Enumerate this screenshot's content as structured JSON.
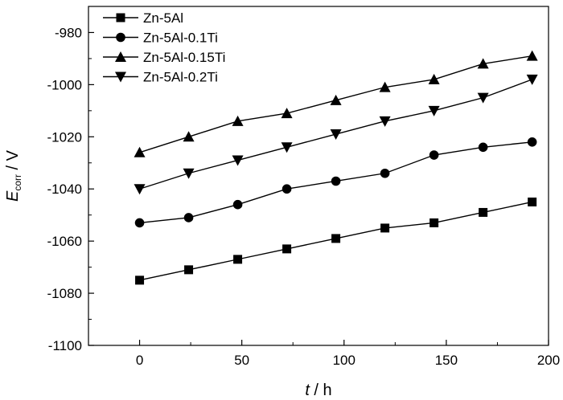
{
  "chart_data": {
    "type": "line",
    "xlabel": {
      "var": "t",
      "unit": " / h"
    },
    "ylabel": {
      "var": "E",
      "sub": "corr",
      "unit": " / V"
    },
    "xlim": [
      -25,
      200
    ],
    "ylim": [
      -1100,
      -970
    ],
    "xticks": [
      0,
      50,
      100,
      150,
      200
    ],
    "yticks": [
      -980,
      -1000,
      -1020,
      -1040,
      -1060,
      -1080,
      -1100
    ],
    "grid": false,
    "legend_position": "top-left",
    "x": [
      0,
      24,
      48,
      72,
      96,
      120,
      144,
      168,
      192
    ],
    "series": [
      {
        "name": "Zn-5Al",
        "marker": "square",
        "values": [
          -1075,
          -1071,
          -1067,
          -1063,
          -1059,
          -1055,
          -1053,
          -1049,
          -1045
        ]
      },
      {
        "name": "Zn-5Al-0.1Ti",
        "marker": "circle",
        "values": [
          -1053,
          -1051,
          -1046,
          -1040,
          -1037,
          -1034,
          -1027,
          -1024,
          -1022
        ]
      },
      {
        "name": "Zn-5Al-0.15Ti",
        "marker": "triangle-up",
        "values": [
          -1026,
          -1020,
          -1014,
          -1011,
          -1006,
          -1001,
          -998,
          -992,
          -989
        ]
      },
      {
        "name": "Zn-5Al-0.2Ti",
        "marker": "triangle-down",
        "values": [
          -1040,
          -1034,
          -1029,
          -1024,
          -1019,
          -1014,
          -1010,
          -1005,
          -998
        ]
      }
    ]
  }
}
